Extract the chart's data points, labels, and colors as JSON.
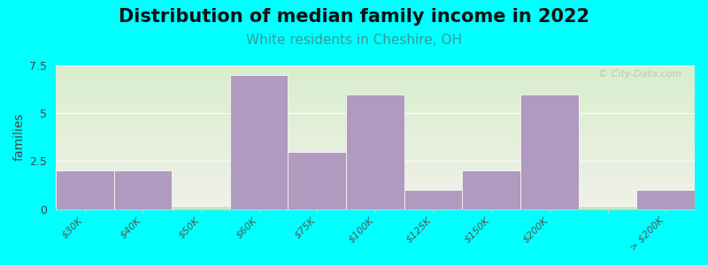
{
  "title": "Distribution of median family income in 2022",
  "subtitle": "White residents in Cheshire, OH",
  "ylabel": "families",
  "background_color": "#00FFFF",
  "plot_bg_gradient_top": "#d8eecc",
  "plot_bg_gradient_bottom": "#f0f0e8",
  "bar_color": "#b09ac0",
  "bar_empty_color": "#c8e8b8",
  "categories": [
    "$30K",
    "$40K",
    "$50K",
    "$60K",
    "$75K",
    "$100K",
    "$125K",
    "$150K",
    "$200K",
    "",
    "> $200K"
  ],
  "values": [
    2,
    2,
    0,
    7,
    3,
    6,
    1,
    2,
    6,
    0,
    1
  ],
  "ylim": [
    0,
    7.5
  ],
  "yticks": [
    0,
    2.5,
    5,
    7.5
  ],
  "title_fontsize": 15,
  "subtitle_fontsize": 11,
  "subtitle_color": "#3a9a9a",
  "ylabel_fontsize": 10,
  "watermark_text": "© City-Data.com"
}
